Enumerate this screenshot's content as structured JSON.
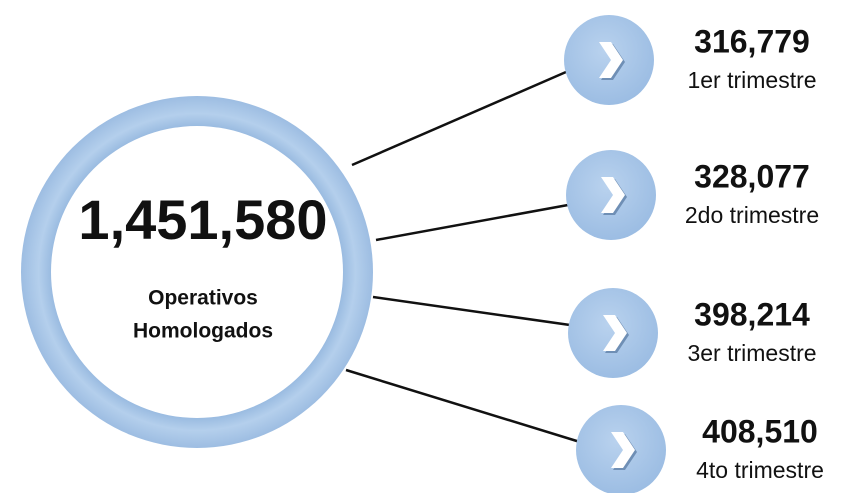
{
  "center": {
    "value": "1,451,580",
    "label_lines": [
      "Operativos",
      "Homologados"
    ]
  },
  "items": [
    {
      "value": "316,779",
      "label": "1er trimestre"
    },
    {
      "value": "328,077",
      "label": "2do trimestre"
    },
    {
      "value": "398,214",
      "label": "3er trimestre"
    },
    {
      "value": "408,510",
      "label": "4to trimestre"
    }
  ]
}
